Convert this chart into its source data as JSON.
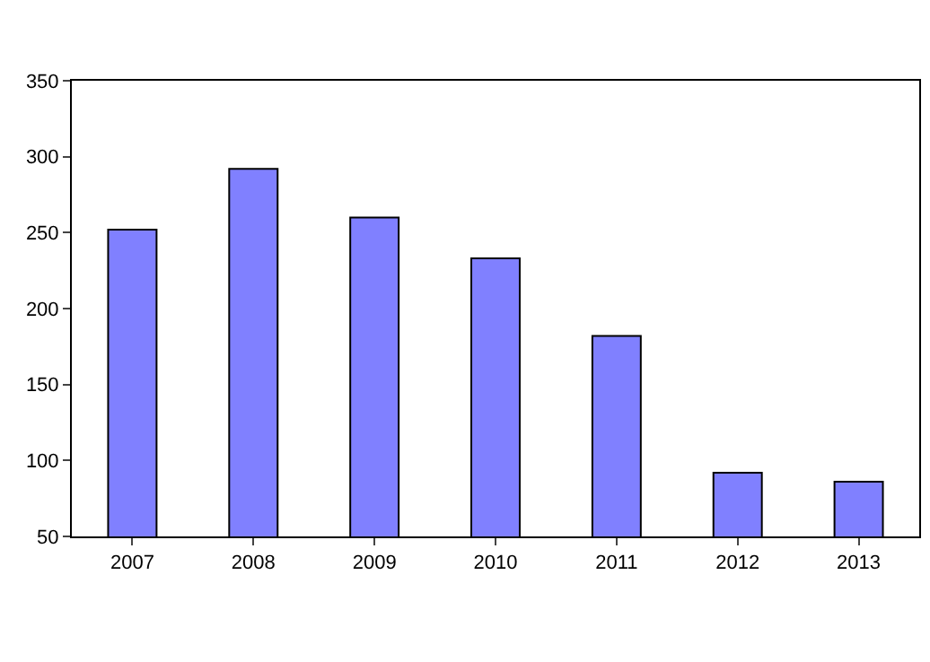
{
  "chart_data": {
    "type": "bar",
    "categories": [
      "2007",
      "2008",
      "2009",
      "2010",
      "2011",
      "2012",
      "2013"
    ],
    "values": [
      252,
      292,
      260,
      233,
      182,
      92,
      86
    ],
    "color": "#8080ff",
    "ylim": [
      50,
      350
    ],
    "yticks": [
      50,
      100,
      150,
      200,
      250,
      300,
      350
    ]
  }
}
